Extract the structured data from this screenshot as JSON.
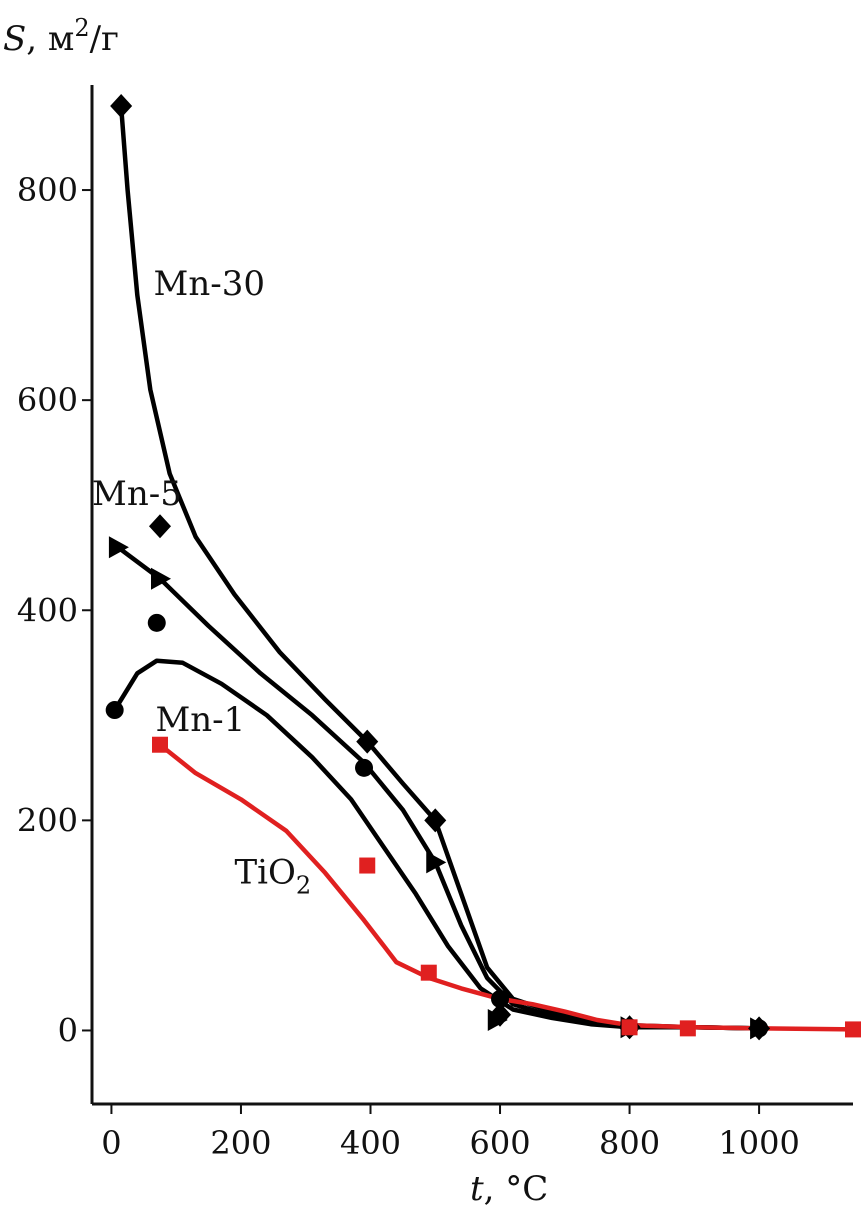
{
  "chart_data": {
    "type": "line",
    "xlabel_var": "t",
    "xlabel_unit": ", °C",
    "ylabel_var": "S",
    "ylabel_unit": ", м",
    "ylabel_sup": "2",
    "ylabel_tail": "/г",
    "xlim": [
      -30,
      1145
    ],
    "ylim": [
      -70,
      900
    ],
    "x_ticks": [
      0,
      200,
      400,
      600,
      800,
      1000
    ],
    "y_ticks": [
      0,
      200,
      400,
      600,
      800
    ],
    "x_tick_labels": [
      "0",
      "200",
      "400",
      "600",
      "800",
      "1000"
    ],
    "y_tick_labels": [
      "0",
      "200",
      "400",
      "600",
      "800"
    ],
    "grid": false,
    "legend": "none",
    "series": [
      {
        "name": "Mn-30",
        "color": "#000000",
        "marker": "diamond",
        "points": [
          [
            15,
            880
          ],
          [
            75,
            480
          ],
          [
            395,
            275
          ],
          [
            500,
            200
          ],
          [
            600,
            15
          ],
          [
            800,
            3
          ],
          [
            1000,
            2
          ]
        ],
        "curve": [
          [
            15,
            880
          ],
          [
            25,
            800
          ],
          [
            40,
            700
          ],
          [
            60,
            610
          ],
          [
            90,
            530
          ],
          [
            130,
            470
          ],
          [
            190,
            415
          ],
          [
            260,
            360
          ],
          [
            330,
            315
          ],
          [
            395,
            275
          ],
          [
            450,
            235
          ],
          [
            500,
            200
          ],
          [
            540,
            130
          ],
          [
            580,
            60
          ],
          [
            620,
            30
          ],
          [
            680,
            18
          ],
          [
            740,
            10
          ],
          [
            800,
            5
          ],
          [
            900,
            3
          ],
          [
            1000,
            2
          ]
        ]
      },
      {
        "name": "Mn-5",
        "color": "#000000",
        "marker": "triangle",
        "points": [
          [
            10,
            460
          ],
          [
            75,
            430
          ],
          [
            500,
            160
          ],
          [
            595,
            10
          ],
          [
            800,
            3
          ],
          [
            1000,
            2
          ]
        ],
        "curve": [
          [
            10,
            460
          ],
          [
            75,
            430
          ],
          [
            150,
            385
          ],
          [
            230,
            340
          ],
          [
            310,
            300
          ],
          [
            390,
            255
          ],
          [
            450,
            210
          ],
          [
            500,
            160
          ],
          [
            540,
            100
          ],
          [
            580,
            50
          ],
          [
            620,
            25
          ],
          [
            680,
            14
          ],
          [
            750,
            8
          ],
          [
            800,
            4
          ],
          [
            900,
            3
          ],
          [
            1000,
            2
          ]
        ]
      },
      {
        "name": "Mn-1",
        "color": "#000000",
        "marker": "circle",
        "points": [
          [
            5,
            305
          ],
          [
            70,
            388
          ],
          [
            390,
            250
          ],
          [
            600,
            30
          ],
          [
            800,
            3
          ],
          [
            1000,
            2
          ]
        ],
        "curve": [
          [
            5,
            305
          ],
          [
            20,
            320
          ],
          [
            40,
            340
          ],
          [
            70,
            352
          ],
          [
            110,
            350
          ],
          [
            170,
            330
          ],
          [
            240,
            300
          ],
          [
            310,
            260
          ],
          [
            370,
            220
          ],
          [
            420,
            175
          ],
          [
            470,
            130
          ],
          [
            520,
            80
          ],
          [
            570,
            40
          ],
          [
            620,
            20
          ],
          [
            680,
            12
          ],
          [
            740,
            6
          ],
          [
            800,
            3
          ],
          [
            900,
            3
          ],
          [
            1000,
            2
          ]
        ]
      },
      {
        "name": "TiO2",
        "color": "#e02020",
        "marker": "square",
        "points": [
          [
            75,
            272
          ],
          [
            395,
            157
          ],
          [
            490,
            55
          ],
          [
            800,
            3
          ],
          [
            890,
            2
          ],
          [
            1145,
            1
          ]
        ],
        "curve": [
          [
            75,
            272
          ],
          [
            130,
            245
          ],
          [
            200,
            220
          ],
          [
            270,
            190
          ],
          [
            330,
            150
          ],
          [
            390,
            105
          ],
          [
            440,
            65
          ],
          [
            490,
            50
          ],
          [
            540,
            40
          ],
          [
            600,
            30
          ],
          [
            650,
            25
          ],
          [
            700,
            18
          ],
          [
            750,
            10
          ],
          [
            800,
            5
          ],
          [
            900,
            3
          ],
          [
            1000,
            2
          ],
          [
            1145,
            1
          ]
        ]
      }
    ],
    "series_labels": [
      {
        "series": 0,
        "text": "Mn-30",
        "at": [
          65,
          700
        ]
      },
      {
        "series": 1,
        "text": "Mn-5",
        "at": [
          -30,
          500
        ]
      },
      {
        "series": 2,
        "text": "Mn-1",
        "at": [
          68,
          285
        ]
      },
      {
        "series": 3,
        "text": "TiO",
        "sub": "2",
        "at": [
          190,
          140
        ]
      }
    ]
  }
}
